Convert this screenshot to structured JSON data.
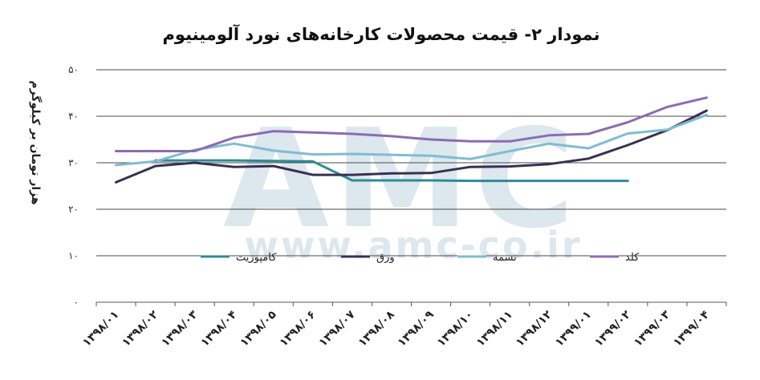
{
  "chart_data": {
    "type": "line",
    "title": "نمودار ۲- قیمت محصولات کارخانه‌های نورد آلومینیوم",
    "ylabel": "هزار تومان بر کیلوگرم",
    "xlabel": "",
    "ylim": [
      0,
      50
    ],
    "yticks": [
      0,
      10,
      20,
      30,
      40,
      50
    ],
    "ytick_labels": [
      "۰",
      "۱۰",
      "۲۰",
      "۳۰",
      "۴۰",
      "۵۰"
    ],
    "grid": true,
    "legend_position": "inside, lower center",
    "categories": [
      "۱۳۹۸/۰۱",
      "۱۳۹۸/۰۲",
      "۱۳۹۸/۰۳",
      "۱۳۹۸/۰۴",
      "۱۳۹۸/۰۵",
      "۱۳۹۸/۰۶",
      "۱۳۹۸/۰۷",
      "۱۳۹۸/۰۸",
      "۱۳۹۸/۰۹",
      "۱۳۹۸/۱۰",
      "۱۳۹۸/۱۱",
      "۱۳۹۸/۱۲",
      "۱۳۹۹/۰۱",
      "۱۳۹۹/۰۲",
      "۱۳۹۹/۰۳",
      "۱۳۹۹/۰۴"
    ],
    "series": [
      {
        "name": "کامپوزیت",
        "color": "#2e8b96",
        "values": [
          null,
          30.5,
          30.5,
          30.5,
          30.4,
          30.3,
          26.2,
          26.2,
          26.2,
          26.1,
          26.1,
          26.1,
          26.1,
          26.1,
          null,
          null
        ]
      },
      {
        "name": "ورق",
        "color": "#3a2f52",
        "values": [
          25.8,
          29.3,
          30,
          29.1,
          29.3,
          27.4,
          27.4,
          27.7,
          27.8,
          29.1,
          29.2,
          29.7,
          30.9,
          33.8,
          37,
          41.2
        ]
      },
      {
        "name": "تسمه",
        "color": "#7fbcd2",
        "values": [
          29.5,
          30.3,
          32.8,
          34.1,
          32.6,
          31.8,
          31.9,
          31.7,
          31.5,
          30.8,
          32.5,
          34.1,
          33.1,
          36.3,
          37.1,
          40.3
        ]
      },
      {
        "name": "کلد",
        "color": "#8c6bb3",
        "values": [
          32.5,
          32.5,
          32.5,
          35.4,
          36.8,
          36.5,
          36.2,
          35.7,
          35,
          34.6,
          34.6,
          35.9,
          36.2,
          38.7,
          42,
          44
        ]
      }
    ]
  },
  "watermark": {
    "logo_text": "AMC",
    "url": "www.amc-co.ir"
  }
}
